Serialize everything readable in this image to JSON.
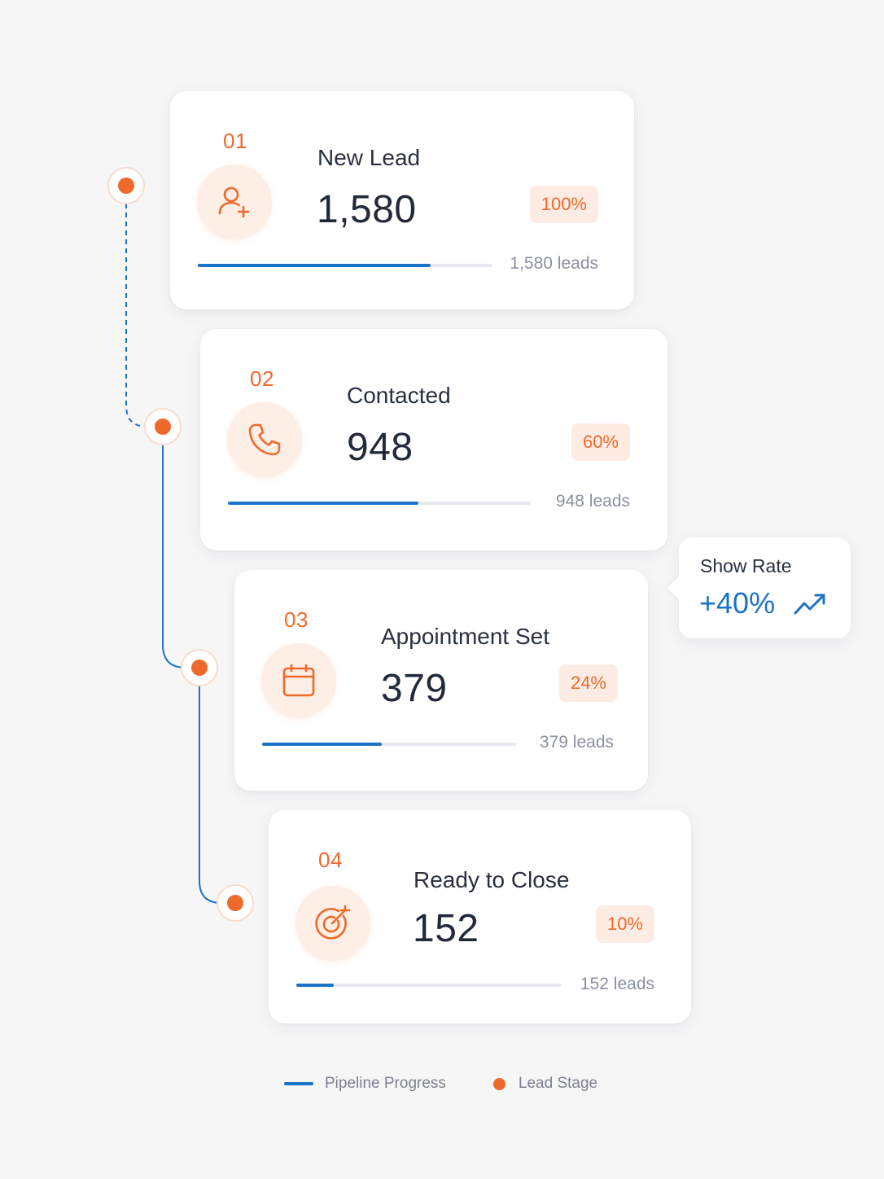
{
  "stages": [
    {
      "number": "01",
      "title": "New Lead",
      "count": "1,580",
      "percent": "100%",
      "leads": "1,580 leads",
      "progress": 0.79,
      "icon": "user-plus-icon"
    },
    {
      "number": "02",
      "title": "Contacted",
      "count": "948",
      "percent": "60%",
      "leads": "948 leads",
      "progress": 0.63,
      "icon": "phone-icon"
    },
    {
      "number": "03",
      "title": "Appointment Set",
      "count": "379",
      "percent": "24%",
      "leads": "379 leads",
      "progress": 0.47,
      "icon": "calendar-icon"
    },
    {
      "number": "04",
      "title": "Ready to Close",
      "count": "152",
      "percent": "10%",
      "leads": "152 leads",
      "progress": 0.14,
      "icon": "target-icon"
    }
  ],
  "callout": {
    "label": "Show Rate",
    "value": "+40%",
    "icon": "trending-up-icon"
  },
  "legend": {
    "progress_label": "Pipeline Progress",
    "stage_label": "Lead Stage"
  },
  "colors": {
    "accent": "#ee6a2a",
    "progress": "#1a73c8",
    "background": "#f6f6f7",
    "card": "#ffffff"
  }
}
